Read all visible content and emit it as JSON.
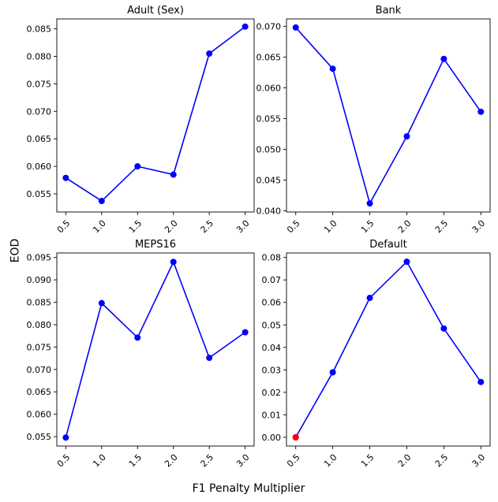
{
  "figure": {
    "ylabel": "EOD",
    "xlabel": "F1 Penalty Multiplier"
  },
  "chart_data": [
    {
      "type": "line",
      "title": "Adult (Sex)",
      "x": [
        0.5,
        1.0,
        1.5,
        2.0,
        2.5,
        3.0
      ],
      "xticks": [
        "0.5",
        "1.0",
        "1.5",
        "2.0",
        "2.5",
        "3.0"
      ],
      "series": [
        {
          "values": [
            0.0579,
            0.0537,
            0.06,
            0.0585,
            0.0805,
            0.0854
          ],
          "color": "#0000ff"
        }
      ],
      "ylim": [
        0.0517,
        0.0868
      ],
      "yticks": [
        "0.055",
        "0.060",
        "0.065",
        "0.070",
        "0.075",
        "0.080",
        "0.085"
      ],
      "grid": false
    },
    {
      "type": "line",
      "title": "Bank",
      "x": [
        0.5,
        1.0,
        1.5,
        2.0,
        2.5,
        3.0
      ],
      "xticks": [
        "0.5",
        "1.0",
        "1.5",
        "2.0",
        "2.5",
        "3.0"
      ],
      "series": [
        {
          "values": [
            0.0698,
            0.0631,
            0.0412,
            0.0521,
            0.0647,
            0.0561
          ],
          "color": "#0000ff"
        }
      ],
      "ylim": [
        0.0398,
        0.0712
      ],
      "yticks": [
        "0.040",
        "0.045",
        "0.050",
        "0.055",
        "0.060",
        "0.065",
        "0.070"
      ],
      "grid": false
    },
    {
      "type": "line",
      "title": "MEPS16",
      "x": [
        0.5,
        1.0,
        1.5,
        2.0,
        2.5,
        3.0
      ],
      "xticks": [
        "0.5",
        "1.0",
        "1.5",
        "2.0",
        "2.5",
        "3.0"
      ],
      "series": [
        {
          "values": [
            0.0548,
            0.0848,
            0.0771,
            0.094,
            0.0726,
            0.0783
          ],
          "color": "#0000ff"
        }
      ],
      "ylim": [
        0.0529,
        0.096
      ],
      "yticks": [
        "0.055",
        "0.060",
        "0.065",
        "0.070",
        "0.075",
        "0.080",
        "0.085",
        "0.090",
        "0.095"
      ],
      "grid": false
    },
    {
      "type": "line",
      "title": "Default",
      "x": [
        0.5,
        1.0,
        1.5,
        2.0,
        2.5,
        3.0
      ],
      "xticks": [
        "0.5",
        "1.0",
        "1.5",
        "2.0",
        "2.5",
        "3.0"
      ],
      "series": [
        {
          "values": [
            0.0,
            0.0289,
            0.062,
            0.0781,
            0.0484,
            0.0246
          ],
          "color": "#0000ff"
        }
      ],
      "highlight_points": [
        {
          "x": 0.5,
          "y": 0.0,
          "color": "#ff0000"
        }
      ],
      "ylim": [
        -0.0039,
        0.082
      ],
      "yticks": [
        "0.00",
        "0.01",
        "0.02",
        "0.03",
        "0.04",
        "0.05",
        "0.06",
        "0.07",
        "0.08"
      ],
      "grid": false
    }
  ]
}
